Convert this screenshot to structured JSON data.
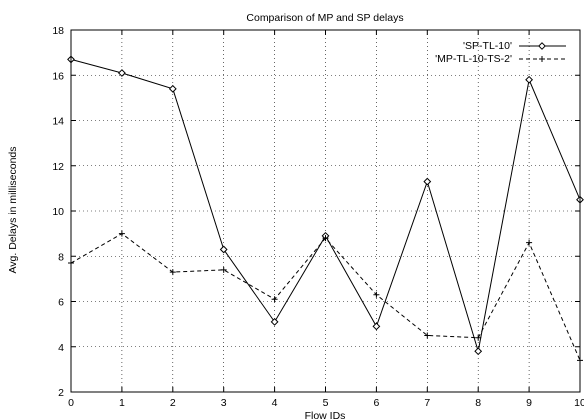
{
  "chart_data": {
    "type": "line",
    "title": "Comparison of MP and SP delays",
    "xlabel": "Flow IDs",
    "ylabel": "Avg. Delays in milliseconds",
    "xlim": [
      0,
      10
    ],
    "ylim": [
      2,
      18
    ],
    "xticks": [
      0,
      1,
      2,
      3,
      4,
      5,
      6,
      7,
      8,
      9,
      10
    ],
    "yticks": [
      2,
      4,
      6,
      8,
      10,
      12,
      14,
      16,
      18
    ],
    "grid": true,
    "legend_position": "top-right",
    "x": [
      0,
      1,
      2,
      3,
      4,
      5,
      6,
      7,
      8,
      9,
      10
    ],
    "series": [
      {
        "name": "'SP-TL-10'",
        "line_style": "solid",
        "marker": "diamond",
        "color": "#000000",
        "values": [
          16.7,
          16.1,
          15.4,
          8.3,
          5.1,
          8.9,
          4.9,
          11.3,
          3.8,
          15.8,
          10.5
        ]
      },
      {
        "name": "'MP-TL-10-TS-2'",
        "line_style": "dashed",
        "marker": "plus",
        "color": "#000000",
        "values": [
          7.7,
          9.0,
          7.3,
          7.4,
          6.1,
          8.8,
          6.3,
          4.5,
          4.4,
          8.6,
          3.4
        ]
      }
    ]
  }
}
